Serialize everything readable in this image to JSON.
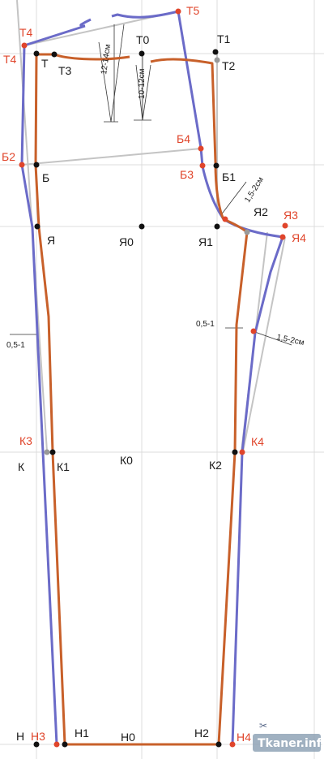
{
  "labels": {
    "T": "Т",
    "T0": "Т0",
    "T1": "Т1",
    "T2": "Т2",
    "T3": "Т3",
    "T4": "Т4",
    "T5": "Т5",
    "B": "Б",
    "B1": "Б1",
    "B2": "Б2",
    "B3": "Б3",
    "B4": "Б4",
    "Ya": "Я",
    "Ya0": "Я0",
    "Ya1": "Я1",
    "Ya2": "Я2",
    "Ya3": "Я3",
    "Ya4": "Я4",
    "K": "К",
    "K0": "К0",
    "K1": "К1",
    "K2": "К2",
    "K3": "К3",
    "K4": "К4",
    "N": "Н",
    "N0": "Н0",
    "N1": "Н1",
    "N2": "Н2",
    "N3": "Н3",
    "N4": "Н4"
  },
  "annotations": {
    "dart_back": "12-14см",
    "dart_front": "10-12см",
    "crotch_ext": "1,5-2см",
    "side_back": "1,5-2см",
    "offset_left": "0,5-1",
    "offset_right": "0,5-1"
  },
  "watermark": "Tkaner.info",
  "colors": {
    "front_line": "#c8602a",
    "back_line": "#6b6bc8",
    "guide_line": "#c4c4c4",
    "label_black": "#1a1a1a",
    "label_red": "#e0452b"
  }
}
